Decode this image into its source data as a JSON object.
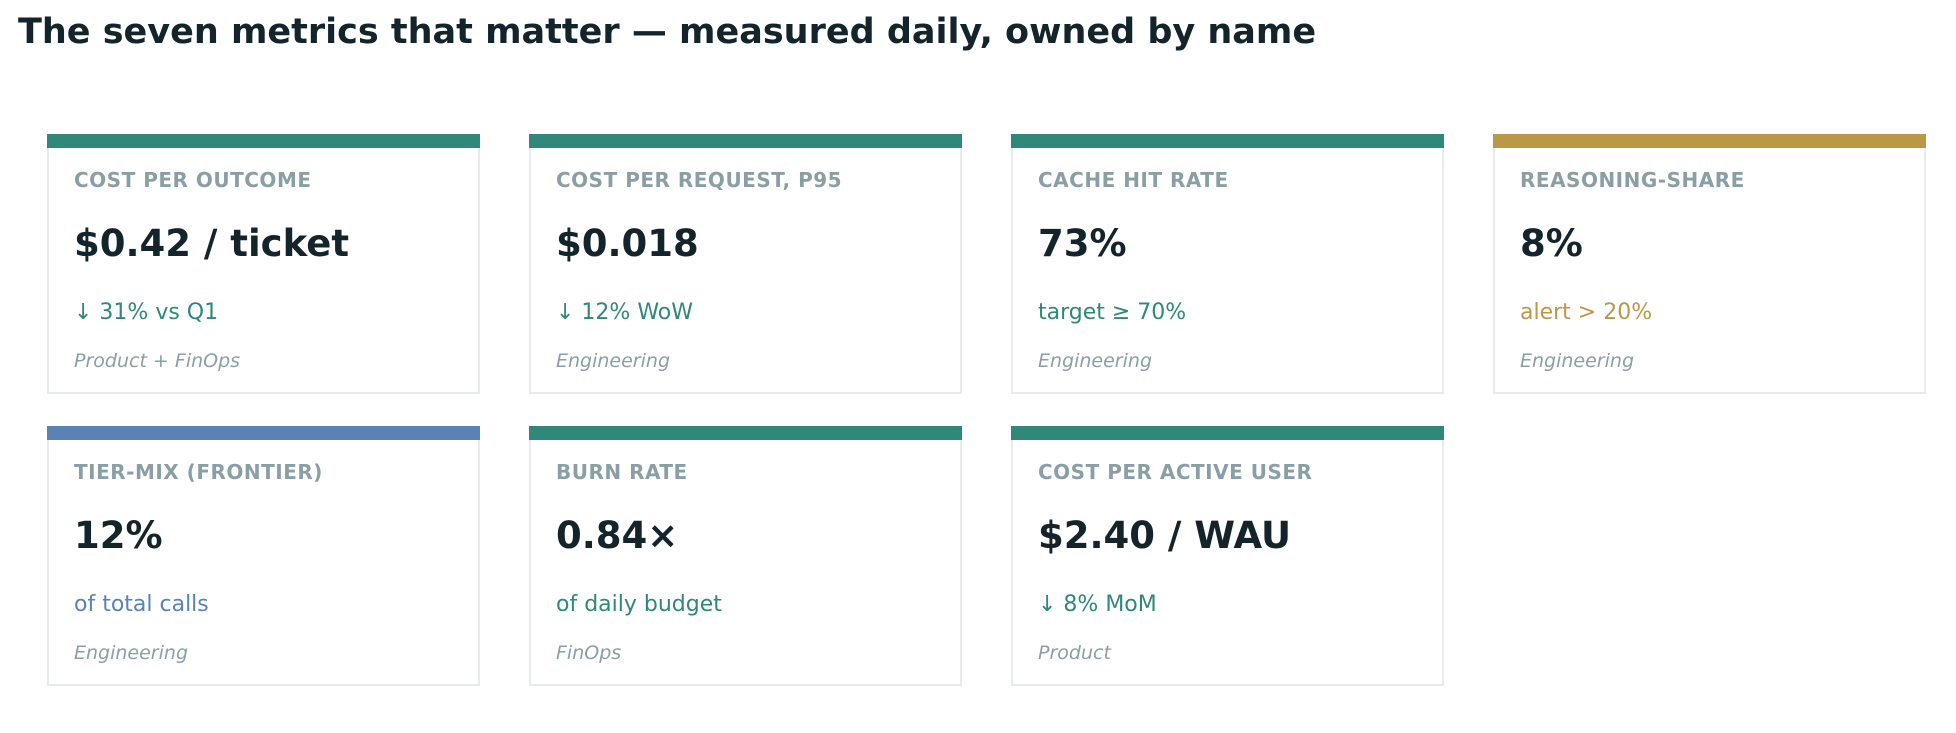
{
  "title": "The seven metrics that matter — measured daily, owned by name",
  "colors": {
    "teal": "#2f887a",
    "gold": "#bb9848",
    "blue": "#5b82b5"
  },
  "cards": [
    {
      "label": "COST PER OUTCOME",
      "value": "$0.42 / ticket",
      "note": "↓ 31% vs Q1",
      "owner": "Product + FinOps",
      "bar_color": "#2f887a",
      "note_color": "#2f887a"
    },
    {
      "label": "COST PER REQUEST, P95",
      "value": "$0.018",
      "note": "↓ 12% WoW",
      "owner": "Engineering",
      "bar_color": "#2f887a",
      "note_color": "#2f887a"
    },
    {
      "label": "CACHE HIT RATE",
      "value": "73%",
      "note": "target ≥ 70%",
      "owner": "Engineering",
      "bar_color": "#2f887a",
      "note_color": "#2f887a"
    },
    {
      "label": "REASONING-SHARE",
      "value": "8%",
      "note": "alert > 20%",
      "owner": "Engineering",
      "bar_color": "#bb9848",
      "note_color": "#bb9848"
    },
    {
      "label": "TIER-MIX (FRONTIER)",
      "value": "12%",
      "note": "of total calls",
      "owner": "Engineering",
      "bar_color": "#5b82b5",
      "note_color": "#5b82b5"
    },
    {
      "label": "BURN RATE",
      "value": "0.84×",
      "note": "of daily budget",
      "owner": "FinOps",
      "bar_color": "#2f887a",
      "note_color": "#2f887a"
    },
    {
      "label": "COST PER ACTIVE USER",
      "value": "$2.40 / WAU",
      "note": "↓ 8% MoM",
      "owner": "Product",
      "bar_color": "#2f887a",
      "note_color": "#2f887a"
    }
  ]
}
